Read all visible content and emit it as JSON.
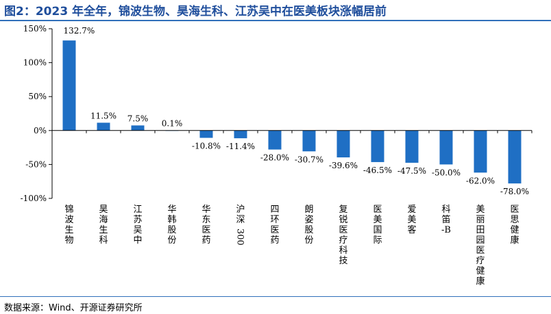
{
  "header": {
    "title": "图2：2023 年全年，锦波生物、昊海生科、江苏吴中在医美板块涨幅居前"
  },
  "footer": {
    "source": "数据来源：Wind、开源证券研究所"
  },
  "colors": {
    "bar": "#1f6fc4",
    "title": "#1f4e9c",
    "rule": "#2f6fba"
  },
  "chart_data": {
    "type": "bar",
    "title": "",
    "xlabel": "",
    "ylabel": "",
    "ylim": [
      -100,
      150
    ],
    "yticks": [
      150,
      100,
      50,
      0,
      -50,
      -100
    ],
    "ytick_labels": [
      "150%",
      "100%",
      "50%",
      "0%",
      "-50%",
      "-100%"
    ],
    "grid": false,
    "legend": "none",
    "categories": [
      "锦波生物",
      "昊海生科",
      "江苏吴中",
      "华韩股份",
      "华东医药",
      "沪深300",
      "四环医药",
      "朗姿股份",
      "复锐医疗科技",
      "医美国际",
      "爱美客",
      "科笛-B",
      "美丽田园医疗健康",
      "医思健康"
    ],
    "values": [
      132.7,
      11.5,
      7.5,
      0.1,
      -10.8,
      -11.4,
      -28.0,
      -30.7,
      -39.6,
      -46.5,
      -47.5,
      -50.0,
      -62.0,
      -78.0
    ],
    "value_labels": [
      "132.7%",
      "11.5%",
      "7.5%",
      "0.1%",
      "-10.8%",
      "-11.4%",
      "-28.0%",
      "-30.7%",
      "-39.6%",
      "-46.5%",
      "-47.5%",
      "-50.0%",
      "-62.0%",
      "-78.0%"
    ]
  }
}
